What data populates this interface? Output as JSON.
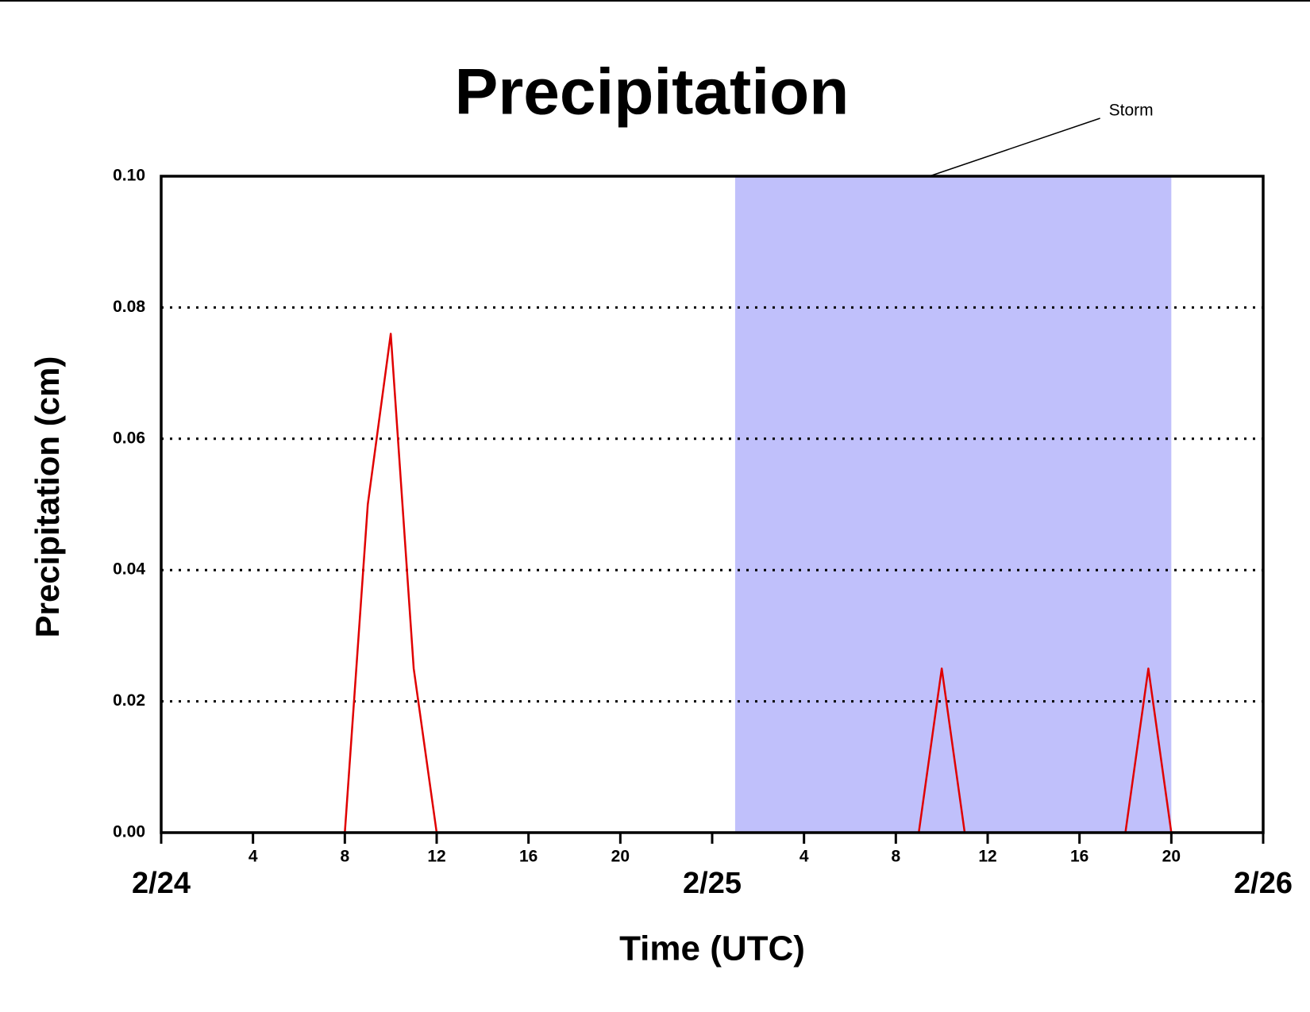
{
  "chart_data": {
    "type": "line",
    "title": "Precipitation",
    "x_label": "Time (UTC)",
    "y_label": "Precipitation (cm)",
    "x": [
      0,
      8,
      9,
      10,
      11,
      12,
      33,
      34,
      35,
      42,
      43,
      44,
      48
    ],
    "values": [
      0,
      0,
      0.05,
      0.076,
      0.025,
      0,
      0,
      0.025,
      0,
      0,
      0.025,
      0,
      0
    ],
    "color": "#e00000",
    "xlim": [
      0,
      48
    ],
    "xticks": [
      {
        "value": 0,
        "label": "2/24"
      },
      4,
      8,
      12,
      16,
      20,
      {
        "value": 24,
        "label": "2/25"
      },
      {
        "value": 28,
        "label": "4"
      },
      {
        "value": 32,
        "label": "8"
      },
      {
        "value": 36,
        "label": "12"
      },
      {
        "value": 40,
        "label": "16"
      },
      {
        "value": 44,
        "label": "20"
      },
      {
        "value": 48,
        "label": "2/26"
      }
    ],
    "ylim": [
      0,
      0.1
    ],
    "yticks": [
      {
        "value": 0,
        "label": "0.00"
      },
      {
        "value": 0.02,
        "label": "0.02"
      },
      {
        "value": 0.04,
        "label": "0.04"
      },
      {
        "value": 0.06,
        "label": "0.06"
      },
      {
        "value": 0.08,
        "label": "0.08"
      },
      {
        "value": 0.1,
        "label": "0.10"
      }
    ],
    "grid": true,
    "shaded_region": {
      "label": "Storm",
      "x": [
        25,
        44
      ],
      "color": "#c0c0fb"
    }
  }
}
